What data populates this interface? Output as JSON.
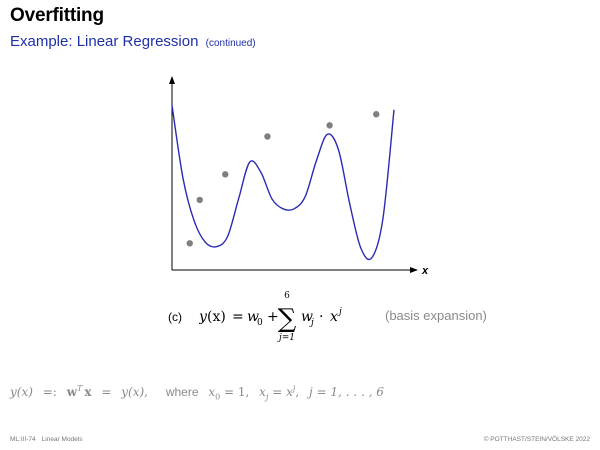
{
  "slide": {
    "title": "Overfitting",
    "subtitle": "Example: Linear Regression",
    "subtitle_note": "(continued)"
  },
  "chart_data": {
    "type": "scatter",
    "xlabel": "x",
    "ylabel": "",
    "grid": false,
    "xlim": [
      0,
      10
    ],
    "ylim": [
      0,
      8
    ],
    "points": {
      "x": [
        0.8,
        1.25,
        2.4,
        4.3,
        7.1,
        9.2
      ],
      "y": [
        1.2,
        3.15,
        4.3,
        6.0,
        6.5,
        7.0
      ]
    },
    "fitted_curve": {
      "x": [
        0.0,
        0.5,
        1.0,
        1.5,
        2.0,
        2.5,
        3.0,
        3.5,
        4.0,
        4.5,
        5.0,
        5.5,
        6.0,
        6.5,
        7.0,
        7.5,
        8.0,
        8.5,
        9.0,
        9.5,
        10.0
      ],
      "y": [
        7.4,
        4.1,
        2.2,
        1.25,
        1.05,
        1.5,
        3.2,
        4.85,
        4.4,
        3.2,
        2.75,
        2.75,
        3.3,
        4.9,
        6.1,
        5.4,
        3.0,
        1.0,
        0.55,
        2.3,
        7.2
      ],
      "color": "#2b2ab4"
    },
    "point_color": "#7f7f7f"
  },
  "equation": {
    "label": "(c)",
    "lhs_func": "y",
    "lhs_arg": "(x)",
    "eq": "=",
    "w0": "w",
    "w0_sub": "0",
    "plus": "+",
    "sum_upper": "6",
    "sum_lower": "j=1",
    "wj": "w",
    "wj_sub": "j",
    "cdot": "·",
    "xj": "x",
    "xj_sup": "j",
    "note": "(basis expansion)"
  },
  "definition": {
    "lhs": "y(x)",
    "defeq": "=:",
    "w": "w",
    "w_sup": "T",
    "x": "x",
    "eq": "=",
    "rhs": "y(x),",
    "where": "where",
    "c1a": "x",
    "c1s": "0",
    "c1b": " = 1,",
    "c2a": "x",
    "c2s": "j",
    "c2b": " = x",
    "c2sup": "j",
    "c2c": ",",
    "c3": "j = 1, . . . , 6"
  },
  "footer": {
    "code": "ML:III-74",
    "section": "Linear Models",
    "copyright": "© POTTHAST/STEIN/VÖLSKE 2022"
  }
}
